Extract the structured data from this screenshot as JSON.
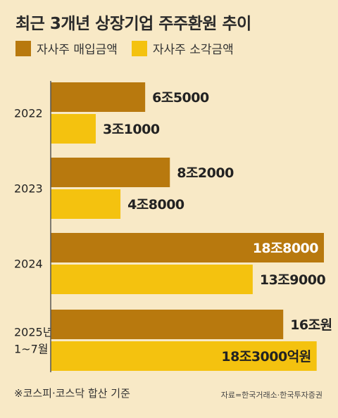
{
  "title": "최근 3개년 상장기업 주주환원 추이",
  "legend": [
    {
      "label": "자사주 매입금액",
      "color": "#b8790e"
    },
    {
      "label": "자사주 소각금액",
      "color": "#f4c20f"
    }
  ],
  "chart_data": {
    "type": "bar",
    "orientation": "horizontal",
    "categories": [
      "2022",
      "2023",
      "2024",
      "2025년\n1~7월"
    ],
    "series": [
      {
        "name": "자사주 매입금액",
        "color": "#b8790e",
        "values": [
          6.5,
          8.2,
          18.8,
          16.0
        ],
        "labels": [
          "6조5000",
          "8조2000",
          "18조8000",
          "16조원"
        ]
      },
      {
        "name": "자사주 소각금액",
        "color": "#f4c20f",
        "values": [
          3.1,
          4.8,
          13.9,
          18.3
        ],
        "labels": [
          "3조1000",
          "4조8000",
          "13조9000",
          "18조3000억원"
        ]
      }
    ],
    "unit": "조원",
    "xlim": [
      0,
      18.8
    ],
    "grid": false,
    "legend_position": "top-left"
  },
  "footnote": "※코스피·코스닥 합산 기준",
  "source": "자료=한국거래소·한국투자증권"
}
